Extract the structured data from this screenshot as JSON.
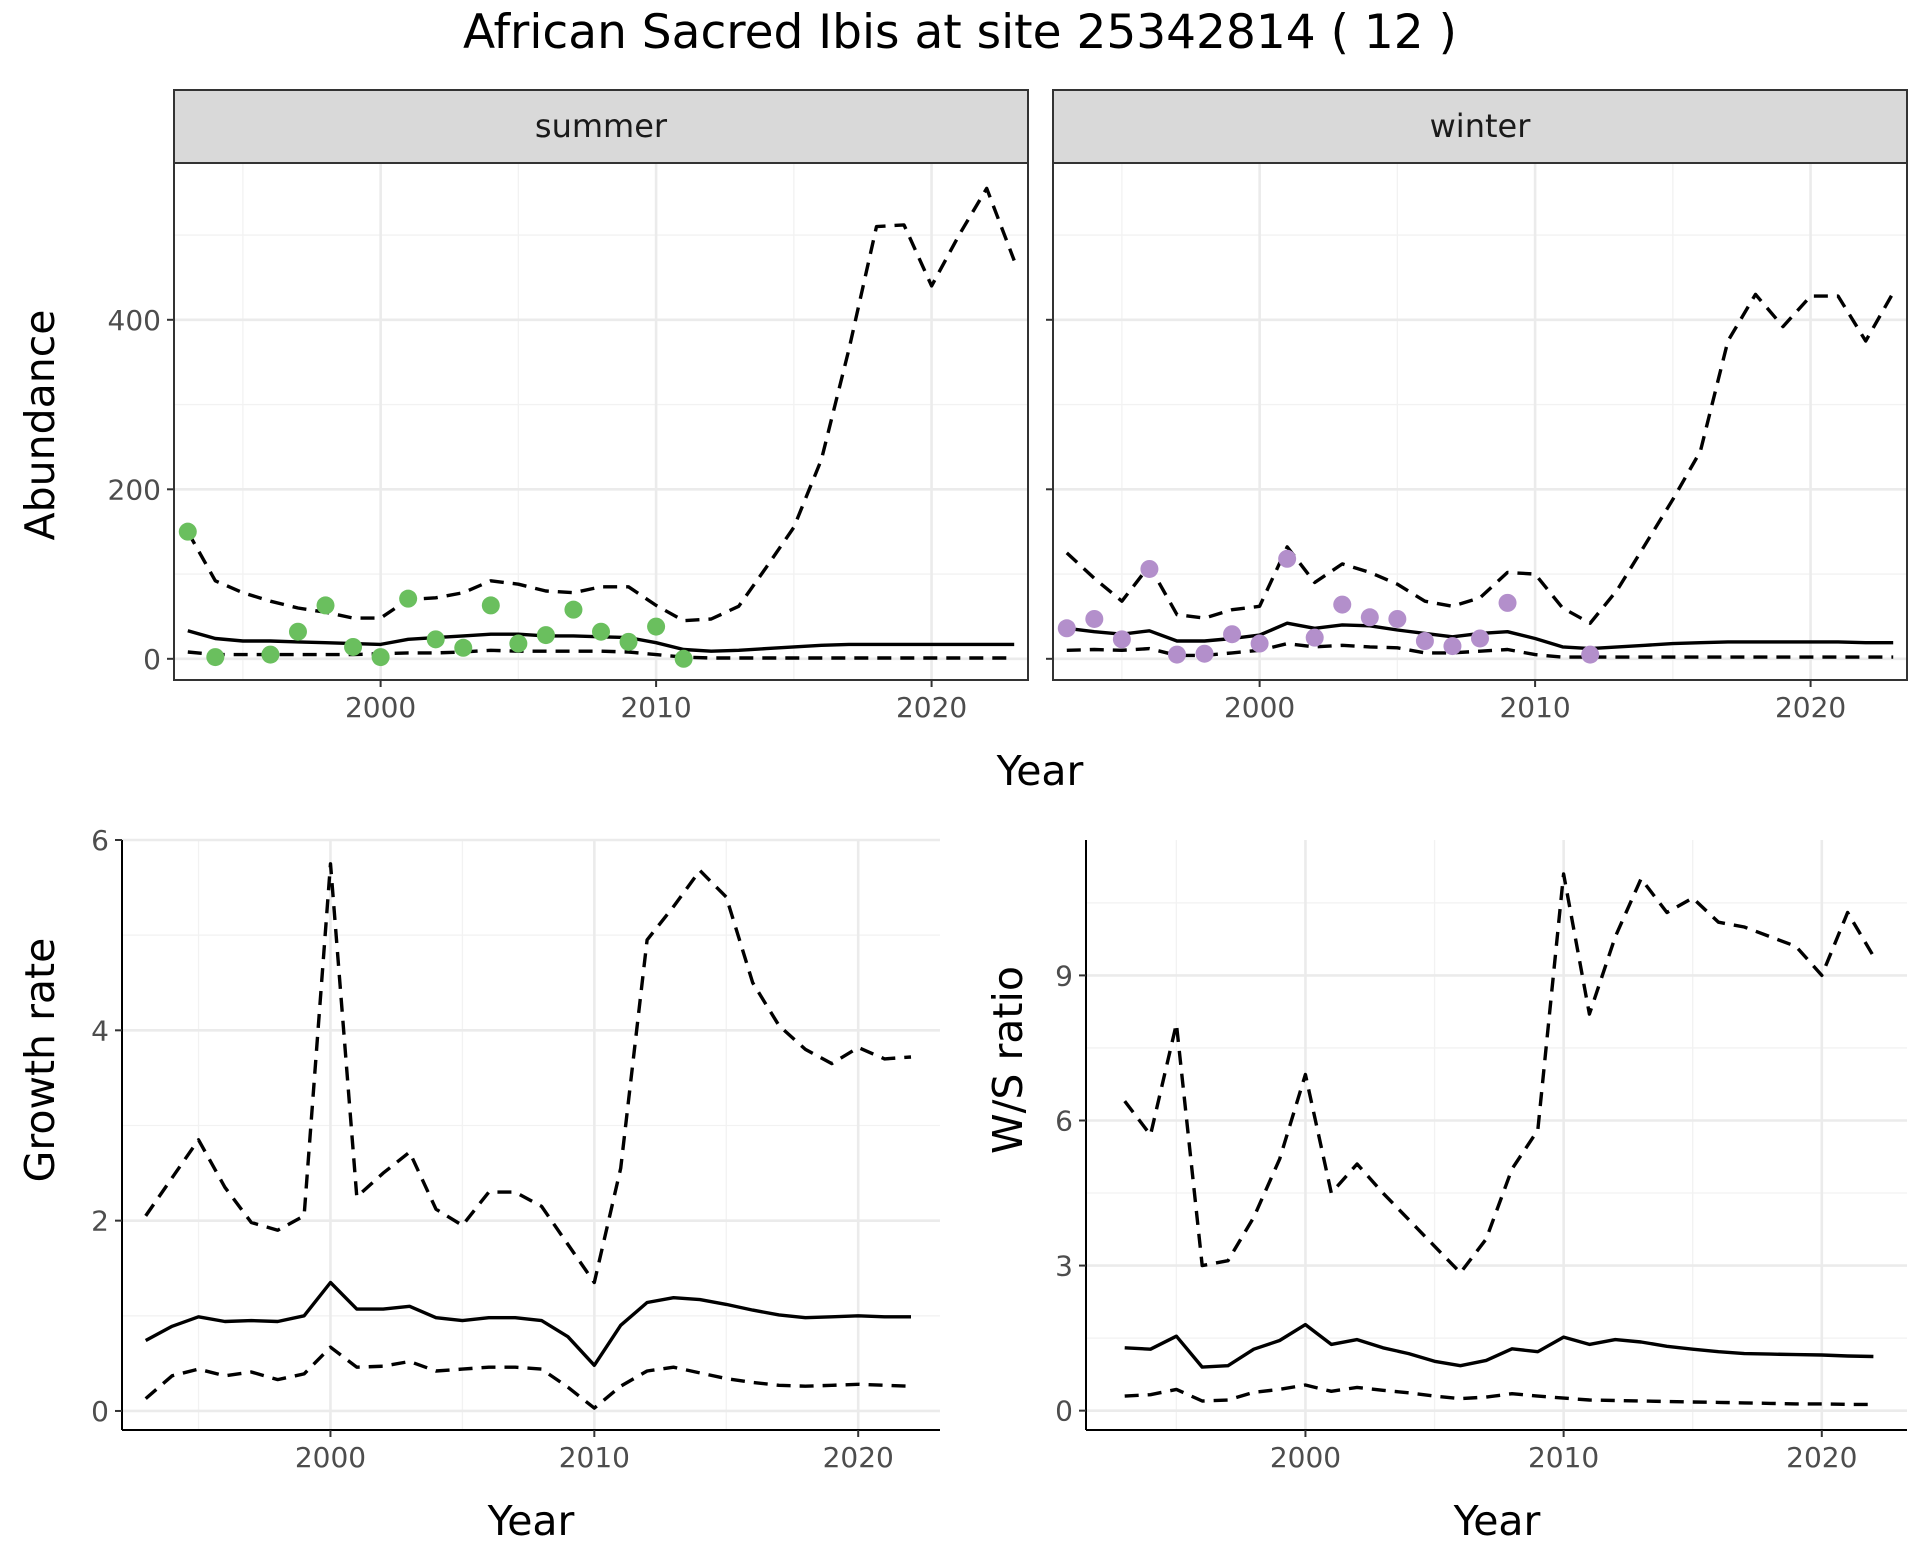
{
  "title": "African Sacred Ibis at site 25342814 ( 12 )",
  "chart_data": [
    {
      "type": "line",
      "facet": "summer",
      "xlabel": "Year",
      "ylabel": "Abundance",
      "xticks": [
        2000,
        2010,
        2020
      ],
      "yticks": [
        0,
        200,
        400
      ],
      "xlim": [
        1992.5,
        2023.5
      ],
      "ylim": [
        -25,
        585
      ],
      "point_color": "#6abf5e",
      "x": [
        1993,
        1994,
        1995,
        1996,
        1997,
        1998,
        1999,
        2000,
        2001,
        2002,
        2003,
        2004,
        2005,
        2006,
        2007,
        2008,
        2009,
        2010,
        2011,
        2012,
        2013,
        2014,
        2015,
        2016,
        2017,
        2018,
        2019,
        2020,
        2021,
        2022,
        2023
      ],
      "series": [
        {
          "role": "estimate",
          "style": "solid",
          "values": [
            33,
            24,
            21,
            21,
            20,
            19,
            18,
            17,
            23,
            25,
            27,
            29,
            29,
            27,
            27,
            26,
            25,
            19,
            11,
            9,
            10,
            12,
            14,
            16,
            17,
            17,
            17,
            17,
            17,
            17,
            17
          ]
        },
        {
          "role": "upper",
          "style": "dashed",
          "values": [
            150,
            92,
            78,
            68,
            60,
            55,
            48,
            48,
            70,
            72,
            78,
            92,
            88,
            80,
            78,
            85,
            85,
            63,
            45,
            47,
            62,
            108,
            155,
            235,
            365,
            510,
            512,
            440,
            500,
            555,
            470
          ]
        },
        {
          "role": "lower",
          "style": "dashed",
          "values": [
            8,
            5,
            5,
            5,
            5,
            5,
            5,
            6,
            7,
            7,
            8,
            10,
            9,
            9,
            9,
            9,
            8,
            5,
            2,
            1,
            1,
            1,
            1,
            1,
            1,
            1,
            1,
            1,
            1,
            1,
            1
          ]
        }
      ],
      "points": [
        {
          "x": 1993,
          "y": 150
        },
        {
          "x": 1994,
          "y": 2
        },
        {
          "x": 1996,
          "y": 5
        },
        {
          "x": 1997,
          "y": 32
        },
        {
          "x": 1998,
          "y": 63
        },
        {
          "x": 1999,
          "y": 14
        },
        {
          "x": 2000,
          "y": 2
        },
        {
          "x": 2001,
          "y": 71
        },
        {
          "x": 2002,
          "y": 23
        },
        {
          "x": 2003,
          "y": 13
        },
        {
          "x": 2004,
          "y": 63
        },
        {
          "x": 2005,
          "y": 18
        },
        {
          "x": 2006,
          "y": 28
        },
        {
          "x": 2007,
          "y": 58
        },
        {
          "x": 2008,
          "y": 32
        },
        {
          "x": 2009,
          "y": 20
        },
        {
          "x": 2010,
          "y": 38
        },
        {
          "x": 2011,
          "y": 0
        }
      ]
    },
    {
      "type": "line",
      "facet": "winter",
      "xlabel": "Year",
      "ylabel": "Abundance",
      "xticks": [
        2000,
        2010,
        2020
      ],
      "yticks": [
        0,
        200,
        400
      ],
      "xlim": [
        1992.5,
        2023.5
      ],
      "ylim": [
        -25,
        585
      ],
      "point_color": "#b38fcb",
      "x": [
        1993,
        1994,
        1995,
        1996,
        1997,
        1998,
        1999,
        2000,
        2001,
        2002,
        2003,
        2004,
        2005,
        2006,
        2007,
        2008,
        2009,
        2010,
        2011,
        2012,
        2013,
        2014,
        2015,
        2016,
        2017,
        2018,
        2019,
        2020,
        2021,
        2022,
        2023
      ],
      "series": [
        {
          "role": "estimate",
          "style": "solid",
          "values": [
            36,
            32,
            29,
            33,
            21,
            21,
            24,
            28,
            42,
            36,
            40,
            39,
            34,
            30,
            26,
            30,
            32,
            24,
            14,
            12,
            14,
            16,
            18,
            19,
            20,
            20,
            20,
            20,
            20,
            19,
            19
          ]
        },
        {
          "role": "upper",
          "style": "dashed",
          "values": [
            125,
            95,
            68,
            110,
            52,
            48,
            58,
            62,
            132,
            90,
            112,
            102,
            88,
            68,
            62,
            72,
            102,
            100,
            60,
            42,
            82,
            135,
            188,
            245,
            375,
            430,
            392,
            428,
            428,
            375,
            432
          ]
        },
        {
          "role": "lower",
          "style": "dashed",
          "values": [
            10,
            11,
            10,
            12,
            4,
            4,
            7,
            10,
            18,
            14,
            16,
            14,
            13,
            7,
            7,
            9,
            11,
            5,
            2,
            2,
            2,
            2,
            2,
            2,
            2,
            2,
            2,
            2,
            2,
            2,
            2
          ]
        }
      ],
      "points": [
        {
          "x": 1993,
          "y": 36
        },
        {
          "x": 1994,
          "y": 47
        },
        {
          "x": 1995,
          "y": 23
        },
        {
          "x": 1996,
          "y": 106
        },
        {
          "x": 1997,
          "y": 5
        },
        {
          "x": 1998,
          "y": 6
        },
        {
          "x": 1999,
          "y": 29
        },
        {
          "x": 2000,
          "y": 18
        },
        {
          "x": 2001,
          "y": 118
        },
        {
          "x": 2002,
          "y": 25
        },
        {
          "x": 2003,
          "y": 64
        },
        {
          "x": 2004,
          "y": 49
        },
        {
          "x": 2005,
          "y": 47
        },
        {
          "x": 2006,
          "y": 21
        },
        {
          "x": 2007,
          "y": 15
        },
        {
          "x": 2008,
          "y": 24
        },
        {
          "x": 2009,
          "y": 66
        },
        {
          "x": 2012,
          "y": 5
        }
      ]
    },
    {
      "type": "line",
      "xlabel": "Year",
      "ylabel": "Growth rate",
      "xticks": [
        2000,
        2010,
        2020
      ],
      "yticks": [
        0,
        2,
        4,
        6
      ],
      "xlim": [
        1992.1,
        2023.1
      ],
      "ylim": [
        -0.2,
        6.0
      ],
      "x": [
        1993,
        1994,
        1995,
        1996,
        1997,
        1998,
        1999,
        2000,
        2001,
        2002,
        2003,
        2004,
        2005,
        2006,
        2007,
        2008,
        2009,
        2010,
        2011,
        2012,
        2013,
        2014,
        2015,
        2016,
        2017,
        2018,
        2019,
        2020,
        2021,
        2022
      ],
      "series": [
        {
          "role": "estimate",
          "style": "solid",
          "values": [
            0.74,
            0.89,
            0.99,
            0.94,
            0.95,
            0.94,
            1.0,
            1.35,
            1.07,
            1.07,
            1.1,
            0.98,
            0.95,
            0.98,
            0.98,
            0.95,
            0.78,
            0.48,
            0.9,
            1.14,
            1.19,
            1.17,
            1.12,
            1.06,
            1.01,
            0.98,
            0.99,
            1.0,
            0.99,
            0.99
          ]
        },
        {
          "role": "upper",
          "style": "dashed",
          "values": [
            2.05,
            2.45,
            2.85,
            2.35,
            1.98,
            1.9,
            2.05,
            5.75,
            2.25,
            2.5,
            2.72,
            2.12,
            1.95,
            2.3,
            2.3,
            2.15,
            1.75,
            1.35,
            2.55,
            4.95,
            5.3,
            5.68,
            5.4,
            4.5,
            4.05,
            3.8,
            3.65,
            3.82,
            3.7,
            3.72
          ]
        },
        {
          "role": "lower",
          "style": "dashed",
          "values": [
            0.13,
            0.37,
            0.44,
            0.37,
            0.41,
            0.33,
            0.39,
            0.67,
            0.46,
            0.47,
            0.52,
            0.42,
            0.44,
            0.46,
            0.46,
            0.44,
            0.25,
            0.03,
            0.26,
            0.42,
            0.46,
            0.4,
            0.34,
            0.3,
            0.27,
            0.26,
            0.27,
            0.28,
            0.27,
            0.26
          ]
        }
      ]
    },
    {
      "type": "line",
      "xlabel": "Year",
      "ylabel": "W/S ratio",
      "xticks": [
        2000,
        2010,
        2020
      ],
      "yticks": [
        0,
        3,
        6,
        9
      ],
      "xlim": [
        1991.5,
        2023.3
      ],
      "ylim": [
        -0.4,
        11.8
      ],
      "x": [
        1993,
        1994,
        1995,
        1996,
        1997,
        1998,
        1999,
        2000,
        2001,
        2002,
        2003,
        2004,
        2005,
        2006,
        2007,
        2008,
        2009,
        2010,
        2011,
        2012,
        2013,
        2014,
        2015,
        2016,
        2017,
        2018,
        2019,
        2020,
        2021,
        2022
      ],
      "series": [
        {
          "role": "estimate",
          "style": "solid",
          "values": [
            1.3,
            1.27,
            1.54,
            0.9,
            0.93,
            1.27,
            1.45,
            1.78,
            1.37,
            1.47,
            1.3,
            1.18,
            1.02,
            0.93,
            1.04,
            1.28,
            1.22,
            1.52,
            1.37,
            1.47,
            1.42,
            1.33,
            1.27,
            1.22,
            1.18,
            1.17,
            1.16,
            1.15,
            1.13,
            1.12
          ]
        },
        {
          "role": "upper",
          "style": "dashed",
          "values": [
            6.4,
            5.7,
            8.0,
            3.0,
            3.1,
            4.0,
            5.2,
            6.95,
            4.5,
            5.1,
            4.5,
            3.95,
            3.4,
            2.85,
            3.55,
            5.0,
            5.8,
            11.1,
            8.2,
            9.8,
            11.0,
            10.3,
            10.6,
            10.1,
            10.0,
            9.8,
            9.6,
            9.0,
            10.3,
            9.4
          ]
        },
        {
          "role": "lower",
          "style": "dashed",
          "values": [
            0.3,
            0.33,
            0.44,
            0.2,
            0.22,
            0.38,
            0.44,
            0.53,
            0.4,
            0.48,
            0.42,
            0.37,
            0.3,
            0.25,
            0.28,
            0.35,
            0.3,
            0.26,
            0.22,
            0.21,
            0.2,
            0.19,
            0.18,
            0.17,
            0.16,
            0.15,
            0.14,
            0.14,
            0.13,
            0.13
          ]
        }
      ]
    }
  ]
}
